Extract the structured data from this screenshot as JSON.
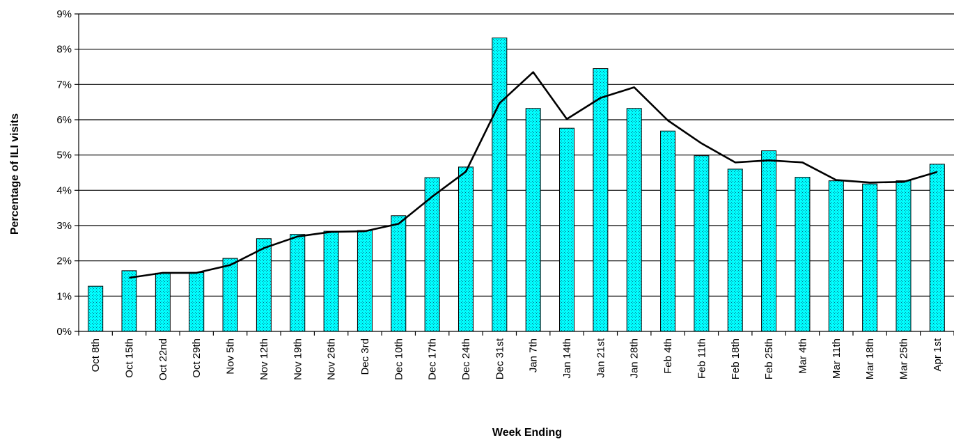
{
  "chart_data": {
    "type": "bar",
    "title": "",
    "xlabel": "Week Ending",
    "ylabel": "Percentage of ILI visits",
    "ylim": [
      0,
      9
    ],
    "y_tick_labels": [
      "0%",
      "1%",
      "2%",
      "3%",
      "4%",
      "5%",
      "6%",
      "7%",
      "8%",
      "9%"
    ],
    "grid": true,
    "categories": [
      "Oct 8th",
      "Oct 15th",
      "Oct 22nd",
      "Oct 29th",
      "Nov 5th",
      "Nov 12th",
      "Nov 19th",
      "Nov 26th",
      "Dec 3rd",
      "Dec 10th",
      "Dec 17th",
      "Dec 24th",
      "Dec 31st",
      "Jan 7th",
      "Jan 14th",
      "Jan 21st",
      "Jan 28th",
      "Feb 4th",
      "Feb 11th",
      "Feb 18th",
      "Feb 25th",
      "Mar 4th",
      "Mar 11th",
      "Mar 18th",
      "Mar 25th",
      "Apr 1st"
    ],
    "series": [
      {
        "type": "bar",
        "values": [
          1.28,
          1.72,
          1.65,
          1.67,
          2.07,
          2.63,
          2.75,
          2.84,
          2.86,
          3.28,
          4.36,
          4.66,
          8.32,
          6.32,
          5.76,
          7.45,
          6.32,
          5.68,
          4.98,
          4.6,
          5.12,
          4.37,
          4.27,
          4.18,
          4.27,
          4.74
        ],
        "color": "#00FFFF"
      },
      {
        "type": "line",
        "values": [
          null,
          1.52,
          1.66,
          1.66,
          1.88,
          2.36,
          2.69,
          2.82,
          2.84,
          3.05,
          3.82,
          4.53,
          6.47,
          7.35,
          6.02,
          6.62,
          6.92,
          5.98,
          5.33,
          4.79,
          4.85,
          4.79,
          4.29,
          4.22,
          4.24,
          4.52
        ],
        "color": "#000000"
      }
    ]
  }
}
